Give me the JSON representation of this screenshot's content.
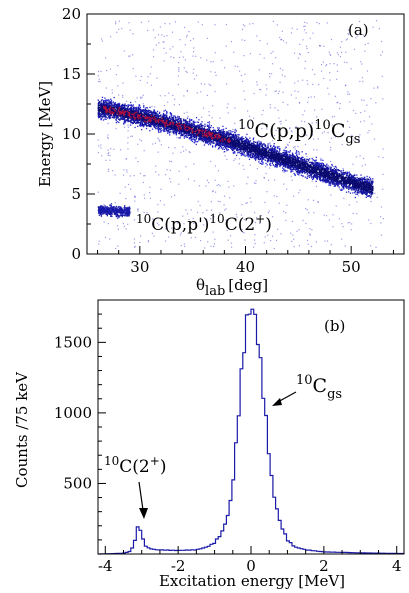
{
  "chart_data": [
    {
      "type": "heatmap",
      "panel_label": "(a)",
      "xlabel": "θ",
      "xlabel_sub": "lab",
      "xlabel_unit": "[deg]",
      "ylabel": "Energy [MeV]",
      "xlim": [
        25,
        55
      ],
      "ylim": [
        0,
        20
      ],
      "xticks": [
        30,
        40,
        50
      ],
      "yticks": [
        0,
        5,
        10,
        15,
        20
      ],
      "bands": [
        {
          "name": "",
          "x": [
            26,
            28,
            30,
            32,
            34,
            36,
            38,
            40,
            42,
            44,
            46,
            48,
            50,
            52
          ],
          "y": [
            12.2,
            11.9,
            11.5,
            11.1,
            10.6,
            10.1,
            9.6,
            9.0,
            8.4,
            7.8,
            7.2,
            6.6,
            6.0,
            5.5
          ]
        },
        {
          "name": "",
          "x": [
            26,
            27,
            28,
            29
          ],
          "y": [
            3.7,
            3.7,
            3.6,
            3.6
          ]
        }
      ],
      "annotations": [
        {
          "parts": [
            {
              "sup": "10"
            },
            {
              "text": "C(p,p)"
            },
            {
              "sup": "10"
            },
            {
              "text": "C"
            },
            {
              "sub": "gs"
            }
          ]
        },
        {
          "parts": [
            {
              "sup": "10"
            },
            {
              "text": "C(p,p')"
            },
            {
              "sup": "10"
            },
            {
              "text": "C(2"
            },
            {
              "sup": "+"
            },
            {
              "text": ")"
            }
          ]
        }
      ]
    },
    {
      "type": "line",
      "panel_label": "(b)",
      "xlabel": "Excitation energy [MeV]",
      "ylabel": "Counts /75 keV",
      "xlim": [
        -4.2,
        4.2
      ],
      "ylim": [
        0,
        1800
      ],
      "xticks": [
        -4,
        -2,
        0,
        2,
        4
      ],
      "yticks": [
        500,
        1000,
        1500
      ],
      "series": [
        {
          "name": "",
          "x": [
            -4.2,
            -3.5,
            -3.3,
            -3.2,
            -3.15,
            -3.1,
            -3.05,
            -3.0,
            -2.95,
            -2.9,
            -2.8,
            -2.6,
            -2.0,
            -1.5,
            -1.2,
            -1.0,
            -0.8,
            -0.6,
            -0.5,
            -0.4,
            -0.3,
            -0.2,
            -0.1,
            0.0,
            0.05,
            0.1,
            0.2,
            0.3,
            0.4,
            0.5,
            0.6,
            0.8,
            1.0,
            1.2,
            1.5,
            2.0,
            3.0,
            4.2
          ],
          "y": [
            0,
            5,
            20,
            80,
            150,
            200,
            185,
            140,
            90,
            60,
            40,
            30,
            25,
            30,
            50,
            80,
            150,
            300,
            500,
            800,
            1150,
            1450,
            1680,
            1750,
            1730,
            1700,
            1500,
            1250,
            980,
            700,
            450,
            220,
            100,
            50,
            30,
            15,
            8,
            3
          ]
        }
      ],
      "annotations": [
        {
          "parts": [
            {
              "sup": "10"
            },
            {
              "text": "C"
            },
            {
              "sub": "gs"
            }
          ],
          "x": 0.35,
          "y": 1050
        },
        {
          "parts": [
            {
              "sup": "10"
            },
            {
              "text": "C(2"
            },
            {
              "sup": "+"
            },
            {
              "text": ")"
            }
          ],
          "x": -3.05,
          "y": 230
        }
      ]
    }
  ]
}
